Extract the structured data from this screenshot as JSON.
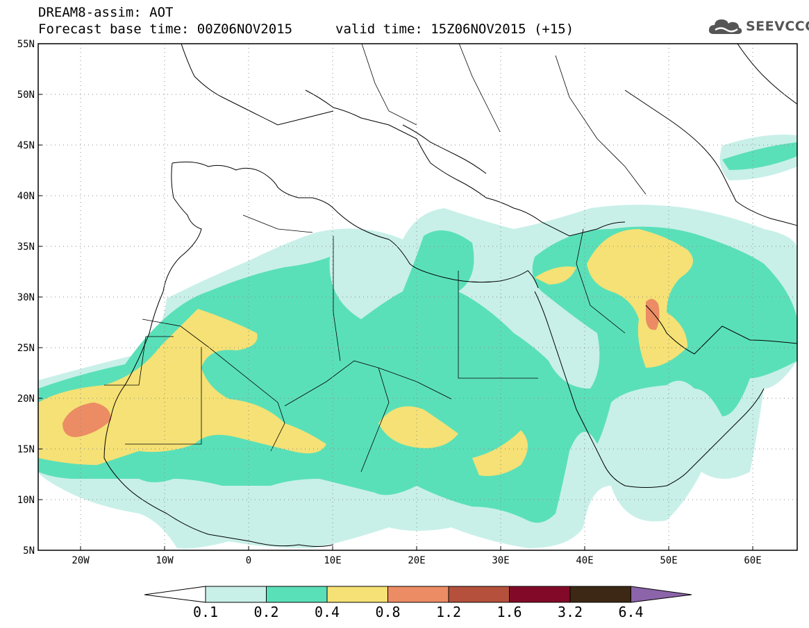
{
  "header": {
    "title": "DREAM8-assim: AOT",
    "base_time": "Forecast base time: 00Z06NOV2015",
    "valid_time": "valid time: 15Z06NOV2015 (+15)",
    "logo_text": "SEEVCCC"
  },
  "map": {
    "lat_labels": [
      "55N",
      "50N",
      "45N",
      "40N",
      "35N",
      "30N",
      "25N",
      "20N",
      "15N",
      "10N",
      "5N"
    ],
    "lon_labels": [
      "20W",
      "10W",
      "0",
      "10E",
      "20E",
      "30E",
      "40E",
      "50E",
      "60E"
    ],
    "lon_range": [
      -25,
      65
    ],
    "lat_range": [
      5,
      55
    ]
  },
  "legend": {
    "levels": [
      "0.1",
      "0.2",
      "0.4",
      "0.8",
      "1.2",
      "1.6",
      "3.2",
      "6.4"
    ],
    "colors": [
      "#ffffff",
      "#c8f0e8",
      "#5ae0b8",
      "#f5e175",
      "#eb8c64",
      "#b4503c",
      "#820a28",
      "#3c2814",
      "#8c64aa"
    ]
  }
}
